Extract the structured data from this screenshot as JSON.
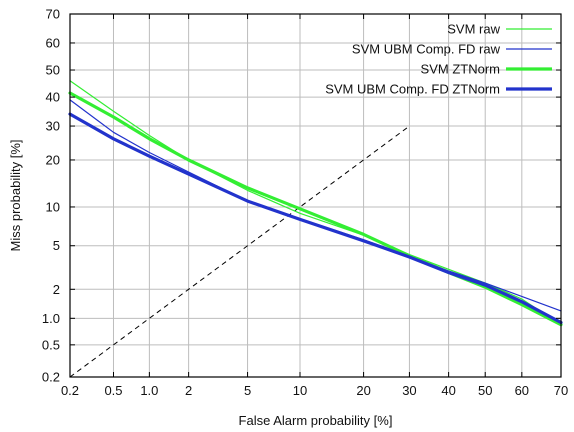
{
  "chart_data": {
    "type": "line",
    "xlabel": "False Alarm probability [%]",
    "ylabel": "Miss probability [%]",
    "xscale": "probit",
    "yscale": "probit",
    "xlim": [
      0.2,
      70
    ],
    "ylim": [
      0.2,
      70
    ],
    "grid": true,
    "legend_position": "top-right",
    "x_ticks": [
      0.2,
      0.5,
      1.0,
      2,
      5,
      10,
      20,
      30,
      40,
      50,
      60,
      70
    ],
    "x_tick_labels": [
      "0.2",
      "0.5",
      "1.0",
      "2",
      "5",
      "10",
      "20",
      "30",
      "40",
      "50",
      "60",
      "70"
    ],
    "y_ticks": [
      0.2,
      0.5,
      1.0,
      2,
      5,
      10,
      20,
      30,
      40,
      50,
      60,
      70
    ],
    "y_tick_labels": [
      "0.2",
      "0.5",
      "1.0",
      "2",
      "5",
      "10",
      "20",
      "30",
      "40",
      "50",
      "60",
      "70"
    ],
    "reference_line": {
      "style": "dashed",
      "color": "#000000",
      "points": [
        [
          0.2,
          0.2
        ],
        [
          30,
          30
        ]
      ]
    },
    "series": [
      {
        "name": "SVM raw",
        "color": "#33ee33",
        "width": 1.2,
        "points": [
          [
            0.2,
            46
          ],
          [
            0.5,
            35
          ],
          [
            1.0,
            27
          ],
          [
            2,
            20
          ],
          [
            5,
            13
          ],
          [
            10,
            9.0
          ],
          [
            20,
            6.1
          ],
          [
            30,
            4.2
          ],
          [
            40,
            3.1
          ],
          [
            50,
            2.3
          ],
          [
            60,
            1.6
          ],
          [
            70,
            0.85
          ]
        ]
      },
      {
        "name": "SVM UBM Comp. FD raw",
        "color": "#2233cc",
        "width": 1.2,
        "points": [
          [
            0.2,
            39
          ],
          [
            0.5,
            28
          ],
          [
            1.0,
            22
          ],
          [
            2,
            17
          ],
          [
            5,
            11
          ],
          [
            10,
            8.2
          ],
          [
            20,
            5.6
          ],
          [
            30,
            4.1
          ],
          [
            40,
            3.0
          ],
          [
            50,
            2.3
          ],
          [
            60,
            1.7
          ],
          [
            70,
            1.2
          ]
        ]
      },
      {
        "name": "SVM ZTNorm",
        "color": "#33ee33",
        "width": 3.2,
        "points": [
          [
            0.2,
            41.5
          ],
          [
            0.5,
            33
          ],
          [
            1.0,
            26
          ],
          [
            2,
            20
          ],
          [
            5,
            13.5
          ],
          [
            10,
            9.7
          ],
          [
            20,
            6.2
          ],
          [
            30,
            4.1
          ],
          [
            40,
            2.9
          ],
          [
            50,
            2.1
          ],
          [
            60,
            1.4
          ],
          [
            70,
            0.85
          ]
        ]
      },
      {
        "name": "SVM UBM Comp. FD ZTNorm",
        "color": "#2233cc",
        "width": 3.2,
        "points": [
          [
            0.2,
            34
          ],
          [
            0.5,
            26
          ],
          [
            1.0,
            21
          ],
          [
            2,
            16.5
          ],
          [
            5,
            11
          ],
          [
            10,
            8.1
          ],
          [
            20,
            5.5
          ],
          [
            30,
            4.0
          ],
          [
            40,
            2.9
          ],
          [
            50,
            2.2
          ],
          [
            60,
            1.5
          ],
          [
            70,
            0.9
          ]
        ]
      }
    ]
  }
}
